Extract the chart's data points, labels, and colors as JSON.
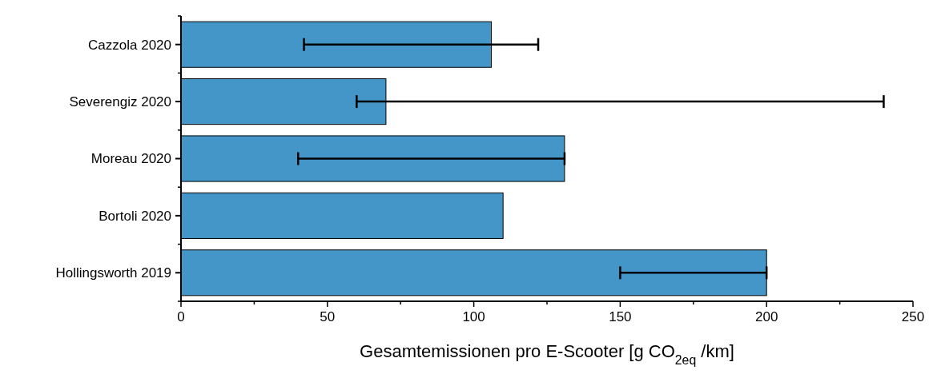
{
  "chart_data": {
    "type": "bar",
    "orientation": "horizontal",
    "xlabel": "Gesamtemissionen pro E-Scooter [g CO$_{2eq}$ /km]",
    "categories": [
      "Cazzola 2020",
      "Severengiz 2020",
      "Moreau 2020",
      "Bortoli 2020",
      "Hollingsworth 2019"
    ],
    "values": [
      106,
      70,
      131,
      110,
      200
    ],
    "errors": [
      [
        42,
        122
      ],
      [
        60,
        240
      ],
      [
        40,
        131
      ],
      null,
      [
        150,
        200
      ]
    ],
    "color": "#4596c8",
    "xlim": [
      0,
      250
    ],
    "xticks": [
      0,
      {
        "value": 25,
        "label": null
      },
      50,
      {
        "value": 75,
        "label": null
      },
      100,
      {
        "value": 125,
        "label": null
      },
      150,
      {
        "value": 175,
        "label": null
      },
      200,
      {
        "value": 225,
        "label": null
      },
      250
    ],
    "grid": false
  }
}
